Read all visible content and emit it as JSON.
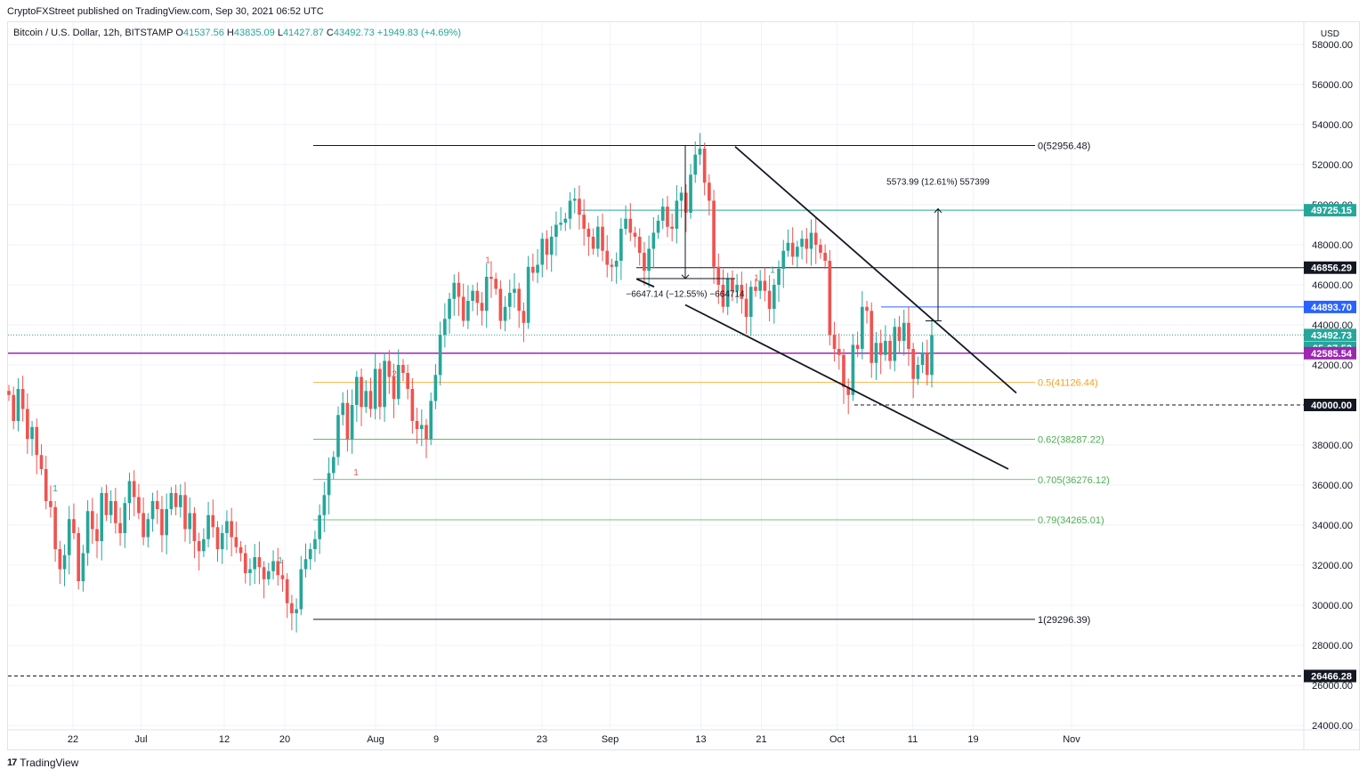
{
  "header": {
    "published": "CryptoFXStreet published on TradingView.com, Sep 30, 2021 06:52 UTC"
  },
  "legend": {
    "symbol": "Bitcoin / U.S. Dollar, 12h, BITSTAMP",
    "o_label": "O",
    "o": "41537.56",
    "h_label": "H",
    "h": "43835.09",
    "l_label": "L",
    "l": "41427.87",
    "c_label": "C",
    "c": "43492.73",
    "change": "+1949.83 (+4.69%)"
  },
  "footer": {
    "logo": "17",
    "brand": "TradingView"
  },
  "colors": {
    "up": "#26a69a",
    "down": "#ef5350",
    "fib_orange": "#f7a21b",
    "fib_green": "#4caf50",
    "magenta": "#9c27b0",
    "blue": "#2962ff",
    "teal": "#26a69a"
  },
  "chart_data": {
    "type": "candlestick",
    "currency": "USD",
    "ylim": [
      23500,
      59000
    ],
    "y_ticks": [
      "58000.00",
      "56000.00",
      "54000.00",
      "52000.00",
      "50000.00",
      "48000.00",
      "46000.00",
      "44000.00",
      "42000.00",
      "40000.00",
      "38000.00",
      "36000.00",
      "34000.00",
      "32000.00",
      "30000.00",
      "28000.00",
      "26000.00",
      "24000.00"
    ],
    "x_ticks": [
      {
        "label": "22",
        "day": 0
      },
      {
        "label": "Jul",
        "day": 9
      },
      {
        "label": "12",
        "day": 20
      },
      {
        "label": "20",
        "day": 28
      },
      {
        "label": "Aug",
        "day": 40
      },
      {
        "label": "9",
        "day": 48
      },
      {
        "label": "23",
        "day": 62
      },
      {
        "label": "Sep",
        "day": 71
      },
      {
        "label": "13",
        "day": 83
      },
      {
        "label": "21",
        "day": 91
      },
      {
        "label": "Oct",
        "day": 101
      },
      {
        "label": "11",
        "day": 111
      },
      {
        "label": "19",
        "day": 119
      },
      {
        "label": "Nov",
        "day": 132
      }
    ],
    "candles_note": "12h candles, Jun 14 2021 - Sep 30 2021 (approximate)",
    "closes": [
      40500,
      39200,
      40800,
      39800,
      38300,
      38900,
      37500,
      36800,
      35200,
      34900,
      32800,
      31800,
      32500,
      34300,
      33600,
      31200,
      32600,
      34700,
      33800,
      33200,
      35600,
      34500,
      35200,
      34100,
      33600,
      35100,
      36200,
      35400,
      34600,
      33400,
      34300,
      35200,
      34800,
      33500,
      34800,
      35600,
      34900,
      35500,
      33800,
      34600,
      33200,
      32700,
      33300,
      34500,
      33900,
      32800,
      33600,
      34200,
      33400,
      32900,
      32600,
      31600,
      31800,
      32400,
      31900,
      31300,
      31700,
      32200,
      31500,
      31300,
      30100,
      29600,
      29800,
      31800,
      32300,
      32800,
      33300,
      34500,
      35500,
      36600,
      37400,
      39500,
      40100,
      38300,
      40000,
      41400,
      39900,
      40700,
      39800,
      41800,
      39900,
      42200,
      41400,
      40300,
      42000,
      41600,
      40800,
      39200,
      38800,
      39000,
      38300,
      40200,
      41500,
      43500,
      44300,
      45300,
      46100,
      45400,
      44200,
      45200,
      45700,
      45100,
      44700,
      46400,
      46300,
      45800,
      44200,
      44900,
      45600,
      45800,
      44700,
      44100,
      46900,
      46600,
      47000,
      48300,
      47500,
      48400,
      49000,
      49100,
      49300,
      50200,
      50300,
      49500,
      48800,
      48400,
      47800,
      48900,
      47700,
      47000,
      46900,
      47200,
      48800,
      49300,
      48600,
      48400,
      47600,
      46700,
      47800,
      48600,
      49200,
      49900,
      48900,
      48800,
      50200,
      50600,
      49600,
      51500,
      52500,
      52800,
      51100,
      50200,
      46900,
      46000,
      44900,
      46300,
      45700,
      46000,
      45300,
      44400,
      45900,
      45700,
      46200,
      45700,
      44800,
      46000,
      46800,
      47700,
      48100,
      47400,
      47900,
      48300,
      47800,
      48600,
      48000,
      47600,
      47200,
      43500,
      42800,
      42500,
      40900,
      40500,
      43000,
      42800,
      44900,
      44700,
      42100,
      43100,
      42500,
      43200,
      42200,
      43900,
      43200,
      44100,
      42800,
      41300,
      42000,
      42600,
      41500,
      43492
    ],
    "annotations": {
      "fib_0": "0(52956.48)",
      "fib_05": "0.5(41126.44)",
      "fib_062": "0.62(38287.22)",
      "fib_0705": "0.705(36276.12)",
      "fib_079": "0.79(34265.01)",
      "fib_1": "1(29296.39)",
      "measure_up": "5573.99 (12.61%) 557399",
      "measure_down": "−6647.14 (−12.55%) −664714",
      "td_labels": [
        "1",
        "1",
        "2",
        "1",
        "1",
        "1",
        "1"
      ]
    },
    "price_labels": [
      {
        "text": "49725.15",
        "value": 49725.15,
        "bg": "#26a69a",
        "fg": "#ffffff"
      },
      {
        "text": "46856.29",
        "value": 46856.29,
        "bg": "#131722",
        "fg": "#ffffff"
      },
      {
        "text": "44893.70",
        "value": 44893.7,
        "bg": "#2962ff",
        "fg": "#ffffff"
      },
      {
        "text": "43492.73",
        "value": 43492.73,
        "bg": "#26a69a",
        "fg": "#ffffff"
      },
      {
        "text": "05:07:52",
        "value": 42850,
        "bg": "#26a69a",
        "fg": "#ffffff"
      },
      {
        "text": "42585.54",
        "value": 42585.54,
        "bg": "#9c27b0",
        "fg": "#ffffff"
      },
      {
        "text": "40000.00",
        "value": 40000.0,
        "bg": "#131722",
        "fg": "#ffffff"
      },
      {
        "text": "26466.28",
        "value": 26466.28,
        "bg": "#131722",
        "fg": "#ffffff"
      }
    ]
  }
}
